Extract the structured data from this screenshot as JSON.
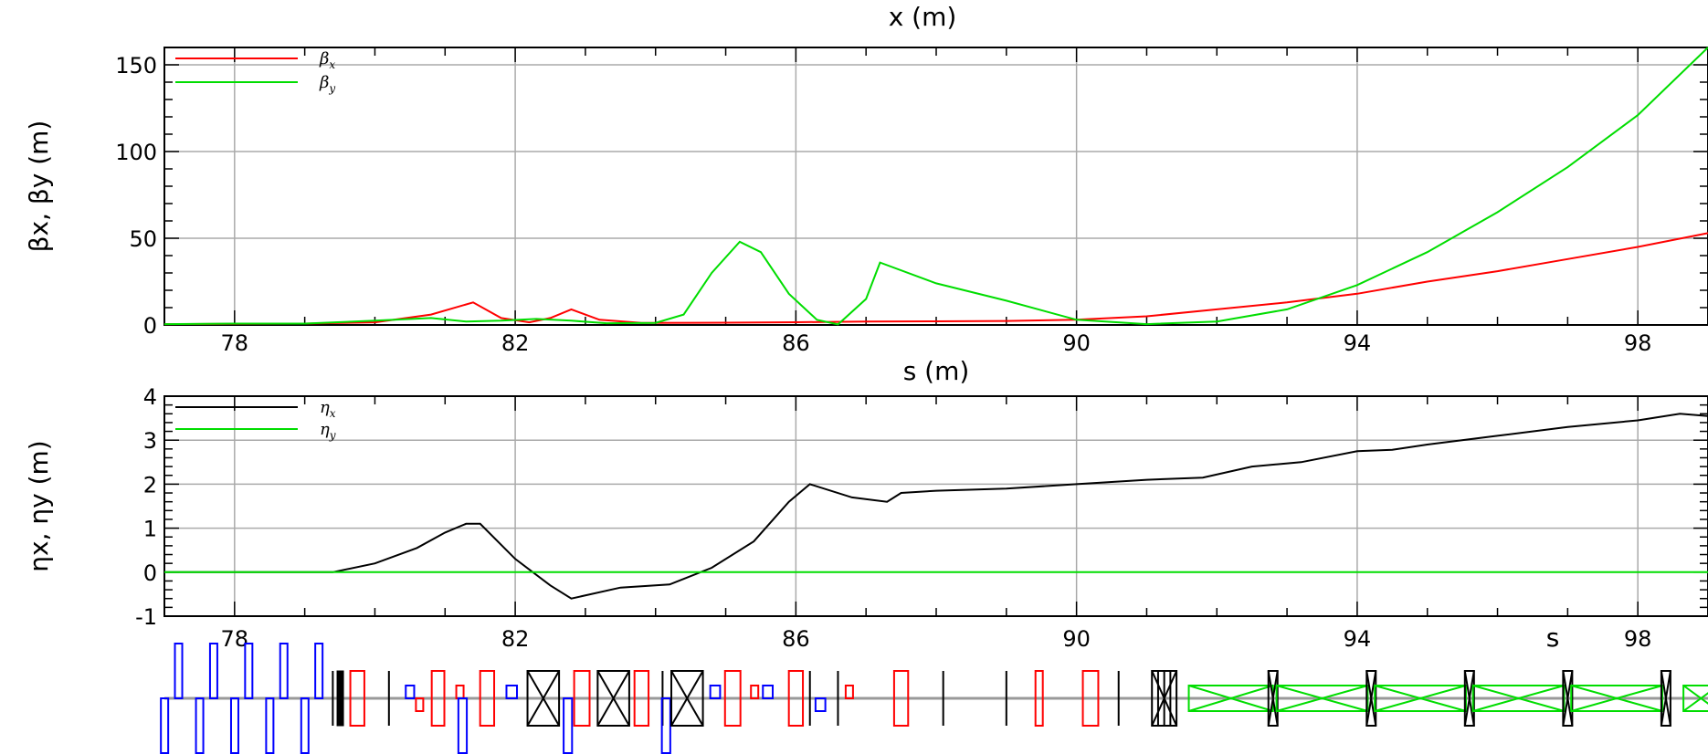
{
  "top_title": "x (m)",
  "chart_data": [
    {
      "type": "line",
      "id": "beta",
      "xlabel": "s (m)",
      "ylabel": "βx, βy (m)",
      "xlim": [
        77,
        99
      ],
      "ylim": [
        0,
        160
      ],
      "xticks": [
        78,
        82,
        86,
        90,
        94,
        98
      ],
      "yticks": [
        0,
        50,
        100,
        150
      ],
      "grid": true,
      "legend_position": "top-left",
      "series": [
        {
          "name": "βx",
          "color": "#ff0000",
          "points": [
            [
              77,
              0.5
            ],
            [
              79,
              0.8
            ],
            [
              80,
              1.5
            ],
            [
              80.8,
              6
            ],
            [
              81.4,
              13
            ],
            [
              81.8,
              4
            ],
            [
              82.2,
              1.5
            ],
            [
              82.5,
              4
            ],
            [
              82.8,
              9
            ],
            [
              83.2,
              3
            ],
            [
              83.8,
              1.2
            ],
            [
              85,
              1.3
            ],
            [
              86,
              1.6
            ],
            [
              87,
              2
            ],
            [
              88,
              2.1
            ],
            [
              89,
              2.3
            ],
            [
              90,
              3
            ],
            [
              91,
              5
            ],
            [
              92,
              9
            ],
            [
              93,
              13
            ],
            [
              94,
              18
            ],
            [
              95,
              25
            ],
            [
              96,
              31
            ],
            [
              97,
              38
            ],
            [
              98,
              45
            ],
            [
              99,
              53
            ]
          ]
        },
        {
          "name": "βy",
          "color": "#00dd00",
          "points": [
            [
              77,
              0.5
            ],
            [
              78,
              0.8
            ],
            [
              79,
              0.8
            ],
            [
              80,
              2.5
            ],
            [
              80.8,
              4
            ],
            [
              81.3,
              2
            ],
            [
              81.8,
              2.5
            ],
            [
              82.3,
              3.5
            ],
            [
              82.8,
              2.5
            ],
            [
              83.3,
              1
            ],
            [
              84,
              1.2
            ],
            [
              84.4,
              6
            ],
            [
              84.8,
              30
            ],
            [
              85.2,
              48
            ],
            [
              85.5,
              42
            ],
            [
              85.9,
              18
            ],
            [
              86.3,
              3
            ],
            [
              86.6,
              0.3
            ],
            [
              87,
              15
            ],
            [
              87.2,
              36
            ],
            [
              88,
              24
            ],
            [
              89,
              14
            ],
            [
              90,
              3
            ],
            [
              91,
              0.5
            ],
            [
              92,
              2
            ],
            [
              93,
              9
            ],
            [
              94,
              23
            ],
            [
              95,
              42
            ],
            [
              96,
              65
            ],
            [
              97,
              91
            ],
            [
              98,
              121
            ],
            [
              99,
              160
            ]
          ]
        }
      ]
    },
    {
      "type": "line",
      "id": "eta",
      "xlabel": "s",
      "ylabel": "ηx, ηy (m)",
      "xlim": [
        77,
        99
      ],
      "ylim": [
        -1,
        4
      ],
      "xticks": [
        78,
        82,
        86,
        90,
        94,
        98
      ],
      "yticks": [
        -1,
        0,
        1,
        2,
        3,
        4
      ],
      "grid": true,
      "legend_position": "top-left",
      "series": [
        {
          "name": "ηx",
          "color": "#000000",
          "points": [
            [
              77,
              0
            ],
            [
              79.4,
              0
            ],
            [
              80,
              0.2
            ],
            [
              80.6,
              0.55
            ],
            [
              81,
              0.9
            ],
            [
              81.3,
              1.1
            ],
            [
              81.5,
              1.1
            ],
            [
              82,
              0.3
            ],
            [
              82.5,
              -0.3
            ],
            [
              82.8,
              -0.6
            ],
            [
              83.5,
              -0.35
            ],
            [
              84.2,
              -0.28
            ],
            [
              84.8,
              0.1
            ],
            [
              85.4,
              0.7
            ],
            [
              85.9,
              1.6
            ],
            [
              86.2,
              2
            ],
            [
              86.8,
              1.7
            ],
            [
              87.3,
              1.6
            ],
            [
              87.5,
              1.8
            ],
            [
              88,
              1.85
            ],
            [
              89,
              1.9
            ],
            [
              90,
              2
            ],
            [
              91,
              2.1
            ],
            [
              91.8,
              2.15
            ],
            [
              92.5,
              2.4
            ],
            [
              93.2,
              2.5
            ],
            [
              94,
              2.75
            ],
            [
              94.5,
              2.78
            ],
            [
              95,
              2.9
            ],
            [
              96,
              3.1
            ],
            [
              97,
              3.3
            ],
            [
              98,
              3.45
            ],
            [
              98.6,
              3.6
            ],
            [
              99,
              3.55
            ]
          ]
        },
        {
          "name": "ηy",
          "color": "#00dd00",
          "points": [
            [
              77,
              0
            ],
            [
              99,
              0
            ]
          ]
        }
      ]
    }
  ],
  "lattice": {
    "xlim": [
      77,
      99
    ],
    "elements": [
      {
        "s": 77.0,
        "kind": "bend",
        "color": "#0000ff",
        "dir": "down",
        "w": 0.1
      },
      {
        "s": 77.2,
        "kind": "bend",
        "color": "#0000ff",
        "dir": "up",
        "w": 0.1
      },
      {
        "s": 77.5,
        "kind": "bend",
        "color": "#0000ff",
        "dir": "down",
        "w": 0.1
      },
      {
        "s": 77.7,
        "kind": "bend",
        "color": "#0000ff",
        "dir": "up",
        "w": 0.1
      },
      {
        "s": 78.0,
        "kind": "bend",
        "color": "#0000ff",
        "dir": "down",
        "w": 0.1
      },
      {
        "s": 78.2,
        "kind": "bend",
        "color": "#0000ff",
        "dir": "up",
        "w": 0.1
      },
      {
        "s": 78.5,
        "kind": "bend",
        "color": "#0000ff",
        "dir": "down",
        "w": 0.1
      },
      {
        "s": 78.7,
        "kind": "bend",
        "color": "#0000ff",
        "dir": "up",
        "w": 0.1
      },
      {
        "s": 79.0,
        "kind": "bend",
        "color": "#0000ff",
        "dir": "down",
        "w": 0.1
      },
      {
        "s": 79.2,
        "kind": "bend",
        "color": "#0000ff",
        "dir": "up",
        "w": 0.1
      },
      {
        "s": 79.4,
        "kind": "marker",
        "color": "#000000"
      },
      {
        "s": 79.5,
        "kind": "block",
        "color": "#000000",
        "w": 0.08
      },
      {
        "s": 79.75,
        "kind": "quad",
        "color": "#ff0000",
        "w": 0.2
      },
      {
        "s": 80.2,
        "kind": "marker",
        "color": "#000000"
      },
      {
        "s": 80.5,
        "kind": "small",
        "color": "#0000ff",
        "w": 0.12,
        "dir": "up"
      },
      {
        "s": 80.62,
        "kind": "small",
        "color": "#ff0000",
        "w": 0.07,
        "dir": "down"
      },
      {
        "s": 80.9,
        "kind": "quad",
        "color": "#ff0000",
        "w": 0.18
      },
      {
        "s": 81.2,
        "kind": "small",
        "color": "#ff0000",
        "w": 0.08,
        "dir": "up"
      },
      {
        "s": 81.25,
        "kind": "bend",
        "color": "#0000ff",
        "dir": "down",
        "w": 0.12
      },
      {
        "s": 81.6,
        "kind": "quad",
        "color": "#ff0000",
        "w": 0.2
      },
      {
        "s": 81.95,
        "kind": "small",
        "color": "#0000ff",
        "w": 0.15,
        "dir": "up"
      },
      {
        "s": 82.4,
        "kind": "cavity",
        "color": "#000000",
        "w": 0.45
      },
      {
        "s": 82.75,
        "kind": "bend",
        "color": "#0000ff",
        "dir": "down",
        "w": 0.12
      },
      {
        "s": 82.95,
        "kind": "quad",
        "color": "#ff0000",
        "w": 0.22
      },
      {
        "s": 83.4,
        "kind": "cavity",
        "color": "#000000",
        "w": 0.45
      },
      {
        "s": 83.8,
        "kind": "quad",
        "color": "#ff0000",
        "w": 0.2
      },
      {
        "s": 84.1,
        "kind": "marker",
        "color": "#000000"
      },
      {
        "s": 84.15,
        "kind": "bend",
        "color": "#0000ff",
        "dir": "down",
        "w": 0.12
      },
      {
        "s": 84.45,
        "kind": "cavity",
        "color": "#000000",
        "w": 0.45
      },
      {
        "s": 84.85,
        "kind": "small",
        "color": "#0000ff",
        "w": 0.14,
        "dir": "up"
      },
      {
        "s": 85.1,
        "kind": "quad",
        "color": "#ff0000",
        "w": 0.22
      },
      {
        "s": 85.4,
        "kind": "small",
        "color": "#ff0000",
        "w": 0.08,
        "dir": "up"
      },
      {
        "s": 85.6,
        "kind": "small",
        "color": "#0000ff",
        "w": 0.14,
        "dir": "up"
      },
      {
        "s": 86.0,
        "kind": "quad",
        "color": "#ff0000",
        "w": 0.2
      },
      {
        "s": 86.2,
        "kind": "marker",
        "color": "#000000"
      },
      {
        "s": 86.35,
        "kind": "small",
        "color": "#0000ff",
        "w": 0.14,
        "dir": "down"
      },
      {
        "s": 86.6,
        "kind": "marker",
        "color": "#000000"
      },
      {
        "s": 86.75,
        "kind": "small",
        "color": "#ff0000",
        "w": 0.08,
        "dir": "up"
      },
      {
        "s": 87.5,
        "kind": "quad",
        "color": "#ff0000",
        "w": 0.2
      },
      {
        "s": 88.1,
        "kind": "marker",
        "color": "#000000"
      },
      {
        "s": 89.0,
        "kind": "marker",
        "color": "#000000"
      },
      {
        "s": 89.45,
        "kind": "quad",
        "color": "#ff0000",
        "w": 0.07
      },
      {
        "s": 90.2,
        "kind": "quad",
        "color": "#ff0000",
        "w": 0.22
      },
      {
        "s": 90.6,
        "kind": "marker",
        "color": "#000000"
      },
      {
        "s": 91.25,
        "kind": "multi",
        "color": "#000000",
        "w": 0.35
      },
      {
        "s": 92.2,
        "kind": "wiggler",
        "color": "#00dd00",
        "w": 1.2
      },
      {
        "s": 92.8,
        "kind": "multi",
        "color": "#000000",
        "w": 0.12
      },
      {
        "s": 93.5,
        "kind": "wiggler",
        "color": "#00dd00",
        "w": 1.3
      },
      {
        "s": 94.2,
        "kind": "multi",
        "color": "#000000",
        "w": 0.12
      },
      {
        "s": 94.9,
        "kind": "wiggler",
        "color": "#00dd00",
        "w": 1.3
      },
      {
        "s": 95.6,
        "kind": "multi",
        "color": "#000000",
        "w": 0.12
      },
      {
        "s": 96.3,
        "kind": "wiggler",
        "color": "#00dd00",
        "w": 1.3
      },
      {
        "s": 97.0,
        "kind": "multi",
        "color": "#000000",
        "w": 0.12
      },
      {
        "s": 97.7,
        "kind": "wiggler",
        "color": "#00dd00",
        "w": 1.3
      },
      {
        "s": 98.4,
        "kind": "multi",
        "color": "#000000",
        "w": 0.12
      },
      {
        "s": 98.9,
        "kind": "wiggler",
        "color": "#00dd00",
        "w": 0.5
      }
    ]
  }
}
